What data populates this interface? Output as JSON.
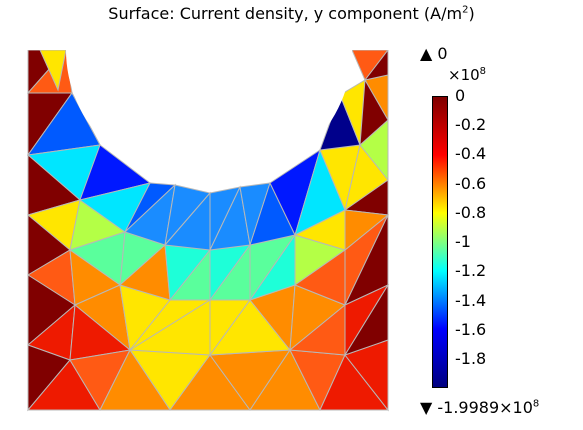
{
  "chart_data": {
    "type": "heatmap",
    "title": "Surface: Current density, y component (A/m",
    "title_sup": "2",
    "title_close": ")",
    "max_label": "▲ 0",
    "colorbar": {
      "multiplier_base": "×10",
      "multiplier_exp": "8",
      "ticks": [
        "0",
        "-0.2",
        "-0.4",
        "-0.6",
        "-0.8",
        "-1",
        "-1.2",
        "-1.4",
        "-1.6",
        "-1.8"
      ],
      "tick_values": [
        0,
        -0.2,
        -0.4,
        -0.6,
        -0.8,
        -1,
        -1.2,
        -1.4,
        -1.6,
        -1.8
      ],
      "range": [
        -1.9989,
        0
      ],
      "colormap": "jet"
    },
    "min_label": "▼ -1.9989×10",
    "min_sup": "8"
  }
}
